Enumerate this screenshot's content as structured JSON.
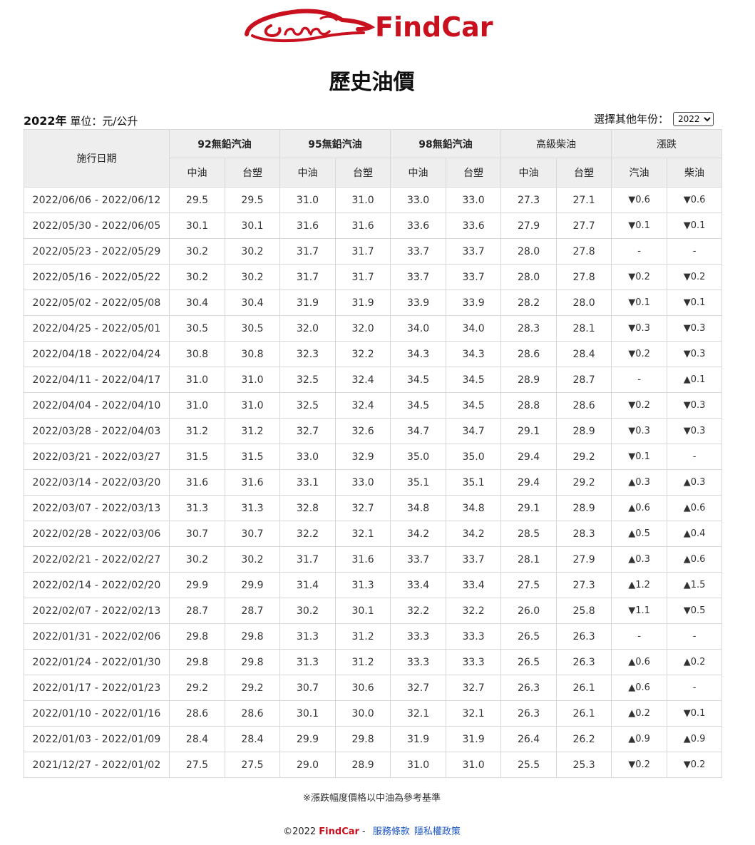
{
  "brand": {
    "name": "FindCar"
  },
  "page_title": "歷史油價",
  "unit_line": {
    "year": "2022年",
    "unit": " 單位：元/公升"
  },
  "year_selector": {
    "label": "選擇其他年份：",
    "selected": "2022"
  },
  "table": {
    "date_header": "施行日期",
    "groups": [
      "92無鉛汽油",
      "95無鉛汽油",
      "98無鉛汽油",
      "高級柴油",
      "漲跌"
    ],
    "subheaders": [
      "中油",
      "台塑",
      "中油",
      "台塑",
      "中油",
      "台塑",
      "中油",
      "台塑",
      "汽油",
      "柴油"
    ],
    "rows": [
      {
        "date": "2022/06/06 - 2022/06/12",
        "v": [
          "29.5",
          "29.5",
          "31.0",
          "31.0",
          "33.0",
          "33.0",
          "27.3",
          "27.1"
        ],
        "gas": "▼0.6",
        "gas_dir": "down",
        "diesel": "▼0.6",
        "diesel_dir": "down"
      },
      {
        "date": "2022/05/30 - 2022/06/05",
        "v": [
          "30.1",
          "30.1",
          "31.6",
          "31.6",
          "33.6",
          "33.6",
          "27.9",
          "27.7"
        ],
        "gas": "▼0.1",
        "gas_dir": "down",
        "diesel": "▼0.1",
        "diesel_dir": "down"
      },
      {
        "date": "2022/05/23 - 2022/05/29",
        "v": [
          "30.2",
          "30.2",
          "31.7",
          "31.7",
          "33.7",
          "33.7",
          "28.0",
          "27.8"
        ],
        "gas": "-",
        "gas_dir": "flat",
        "diesel": "-",
        "diesel_dir": "flat"
      },
      {
        "date": "2022/05/16 - 2022/05/22",
        "v": [
          "30.2",
          "30.2",
          "31.7",
          "31.7",
          "33.7",
          "33.7",
          "28.0",
          "27.8"
        ],
        "gas": "▼0.2",
        "gas_dir": "down",
        "diesel": "▼0.2",
        "diesel_dir": "down"
      },
      {
        "date": "2022/05/02 - 2022/05/08",
        "v": [
          "30.4",
          "30.4",
          "31.9",
          "31.9",
          "33.9",
          "33.9",
          "28.2",
          "28.0"
        ],
        "gas": "▼0.1",
        "gas_dir": "down",
        "diesel": "▼0.1",
        "diesel_dir": "down"
      },
      {
        "date": "2022/04/25 - 2022/05/01",
        "v": [
          "30.5",
          "30.5",
          "32.0",
          "32.0",
          "34.0",
          "34.0",
          "28.3",
          "28.1"
        ],
        "gas": "▼0.3",
        "gas_dir": "down",
        "diesel": "▼0.3",
        "diesel_dir": "down"
      },
      {
        "date": "2022/04/18 - 2022/04/24",
        "v": [
          "30.8",
          "30.8",
          "32.3",
          "32.2",
          "34.3",
          "34.3",
          "28.6",
          "28.4"
        ],
        "gas": "▼0.2",
        "gas_dir": "down",
        "diesel": "▼0.3",
        "diesel_dir": "down"
      },
      {
        "date": "2022/04/11 - 2022/04/17",
        "v": [
          "31.0",
          "31.0",
          "32.5",
          "32.4",
          "34.5",
          "34.5",
          "28.9",
          "28.7"
        ],
        "gas": "-",
        "gas_dir": "flat",
        "diesel": "▲0.1",
        "diesel_dir": "up"
      },
      {
        "date": "2022/04/04 - 2022/04/10",
        "v": [
          "31.0",
          "31.0",
          "32.5",
          "32.4",
          "34.5",
          "34.5",
          "28.8",
          "28.6"
        ],
        "gas": "▼0.2",
        "gas_dir": "down",
        "diesel": "▼0.3",
        "diesel_dir": "down"
      },
      {
        "date": "2022/03/28 - 2022/04/03",
        "v": [
          "31.2",
          "31.2",
          "32.7",
          "32.6",
          "34.7",
          "34.7",
          "29.1",
          "28.9"
        ],
        "gas": "▼0.3",
        "gas_dir": "down",
        "diesel": "▼0.3",
        "diesel_dir": "down"
      },
      {
        "date": "2022/03/21 - 2022/03/27",
        "v": [
          "31.5",
          "31.5",
          "33.0",
          "32.9",
          "35.0",
          "35.0",
          "29.4",
          "29.2"
        ],
        "gas": "▼0.1",
        "gas_dir": "down",
        "diesel": "-",
        "diesel_dir": "flat"
      },
      {
        "date": "2022/03/14 - 2022/03/20",
        "v": [
          "31.6",
          "31.6",
          "33.1",
          "33.0",
          "35.1",
          "35.1",
          "29.4",
          "29.2"
        ],
        "gas": "▲0.3",
        "gas_dir": "up",
        "diesel": "▲0.3",
        "diesel_dir": "up"
      },
      {
        "date": "2022/03/07 - 2022/03/13",
        "v": [
          "31.3",
          "31.3",
          "32.8",
          "32.7",
          "34.8",
          "34.8",
          "29.1",
          "28.9"
        ],
        "gas": "▲0.6",
        "gas_dir": "up",
        "diesel": "▲0.6",
        "diesel_dir": "up"
      },
      {
        "date": "2022/02/28 - 2022/03/06",
        "v": [
          "30.7",
          "30.7",
          "32.2",
          "32.1",
          "34.2",
          "34.2",
          "28.5",
          "28.3"
        ],
        "gas": "▲0.5",
        "gas_dir": "up",
        "diesel": "▲0.4",
        "diesel_dir": "up"
      },
      {
        "date": "2022/02/21 - 2022/02/27",
        "v": [
          "30.2",
          "30.2",
          "31.7",
          "31.6",
          "33.7",
          "33.7",
          "28.1",
          "27.9"
        ],
        "gas": "▲0.3",
        "gas_dir": "up",
        "diesel": "▲0.6",
        "diesel_dir": "up"
      },
      {
        "date": "2022/02/14 - 2022/02/20",
        "v": [
          "29.9",
          "29.9",
          "31.4",
          "31.3",
          "33.4",
          "33.4",
          "27.5",
          "27.3"
        ],
        "gas": "▲1.2",
        "gas_dir": "up",
        "diesel": "▲1.5",
        "diesel_dir": "up"
      },
      {
        "date": "2022/02/07 - 2022/02/13",
        "v": [
          "28.7",
          "28.7",
          "30.2",
          "30.1",
          "32.2",
          "32.2",
          "26.0",
          "25.8"
        ],
        "gas": "▼1.1",
        "gas_dir": "down",
        "diesel": "▼0.5",
        "diesel_dir": "down"
      },
      {
        "date": "2022/01/31 - 2022/02/06",
        "v": [
          "29.8",
          "29.8",
          "31.3",
          "31.2",
          "33.3",
          "33.3",
          "26.5",
          "26.3"
        ],
        "gas": "-",
        "gas_dir": "flat",
        "diesel": "-",
        "diesel_dir": "flat"
      },
      {
        "date": "2022/01/24 - 2022/01/30",
        "v": [
          "29.8",
          "29.8",
          "31.3",
          "31.2",
          "33.3",
          "33.3",
          "26.5",
          "26.3"
        ],
        "gas": "▲0.6",
        "gas_dir": "up",
        "diesel": "▲0.2",
        "diesel_dir": "up"
      },
      {
        "date": "2022/01/17 - 2022/01/23",
        "v": [
          "29.2",
          "29.2",
          "30.7",
          "30.6",
          "32.7",
          "32.7",
          "26.3",
          "26.1"
        ],
        "gas": "▲0.6",
        "gas_dir": "up",
        "diesel": "-",
        "diesel_dir": "flat"
      },
      {
        "date": "2022/01/10 - 2022/01/16",
        "v": [
          "28.6",
          "28.6",
          "30.1",
          "30.0",
          "32.1",
          "32.1",
          "26.3",
          "26.1"
        ],
        "gas": "▲0.2",
        "gas_dir": "up",
        "diesel": "▼0.1",
        "diesel_dir": "down"
      },
      {
        "date": "2022/01/03 - 2022/01/09",
        "v": [
          "28.4",
          "28.4",
          "29.9",
          "29.8",
          "31.9",
          "31.9",
          "26.4",
          "26.2"
        ],
        "gas": "▲0.9",
        "gas_dir": "up",
        "diesel": "▲0.9",
        "diesel_dir": "up"
      },
      {
        "date": "2021/12/27 - 2022/01/02",
        "v": [
          "27.5",
          "27.5",
          "29.0",
          "28.9",
          "31.0",
          "31.0",
          "25.5",
          "25.3"
        ],
        "gas": "▼0.2",
        "gas_dir": "down",
        "diesel": "▼0.2",
        "diesel_dir": "down"
      }
    ]
  },
  "note": "※漲跌幅度價格以中油為參考基準",
  "footer": {
    "copyright": "©2022 ",
    "brand": "FindCar",
    "sep": " - ",
    "terms": "服務條款",
    "privacy": "隱私權政策"
  },
  "colors": {
    "brand_red": "#c8101e",
    "down_green": "#1e8a2e",
    "up_red": "#e03030",
    "link_blue": "#1a55c4"
  }
}
